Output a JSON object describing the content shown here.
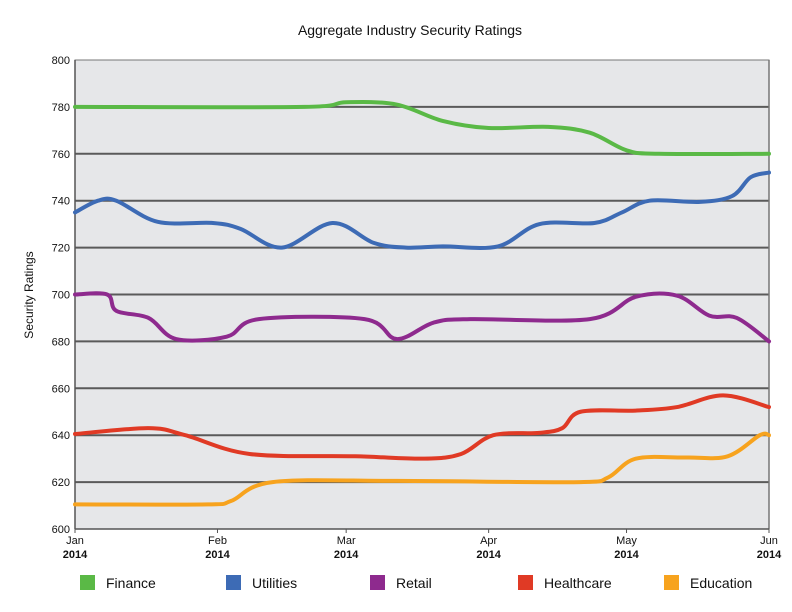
{
  "chart_data": {
    "type": "line",
    "title": "Aggregate Industry Security Ratings",
    "xlabel": "",
    "ylabel": "Security Ratings",
    "ylim": [
      600,
      800
    ],
    "yticks": [
      600,
      620,
      640,
      660,
      680,
      700,
      720,
      740,
      760,
      780,
      800
    ],
    "xlim": [
      "2014-01-01",
      "2014-06-01"
    ],
    "xticks": [
      {
        "date": "2014-01-01",
        "month": "Jan",
        "year": "2014"
      },
      {
        "date": "2014-02-01",
        "month": "Feb",
        "year": "2014"
      },
      {
        "date": "2014-03-01",
        "month": "Mar",
        "year": "2014"
      },
      {
        "date": "2014-04-01",
        "month": "Apr",
        "year": "2014"
      },
      {
        "date": "2014-05-01",
        "month": "May",
        "year": "2014"
      },
      {
        "date": "2014-06-01",
        "month": "Jun",
        "year": "2014"
      }
    ],
    "grid": true,
    "legend_position": "bottom",
    "background": "#e6e7e9",
    "series": [
      {
        "name": "Finance",
        "color": "#5ab946",
        "points": [
          [
            "2014-01-01",
            780
          ],
          [
            "2014-02-20",
            780
          ],
          [
            "2014-03-01",
            782
          ],
          [
            "2014-03-12",
            781
          ],
          [
            "2014-03-22",
            774
          ],
          [
            "2014-04-01",
            771
          ],
          [
            "2014-04-14",
            771.5
          ],
          [
            "2014-04-23",
            769
          ],
          [
            "2014-05-01",
            761.5
          ],
          [
            "2014-05-08",
            760
          ],
          [
            "2014-06-01",
            760
          ]
        ]
      },
      {
        "name": "Utilities",
        "color": "#3d6bb5",
        "points": [
          [
            "2014-01-01",
            735
          ],
          [
            "2014-01-06",
            740
          ],
          [
            "2014-01-10",
            740
          ],
          [
            "2014-01-19",
            731
          ],
          [
            "2014-01-31",
            730.5
          ],
          [
            "2014-02-06",
            728
          ],
          [
            "2014-02-15",
            720
          ],
          [
            "2014-02-26",
            730.5
          ],
          [
            "2014-03-07",
            722
          ],
          [
            "2014-03-14",
            720
          ],
          [
            "2014-03-22",
            720.5
          ],
          [
            "2014-04-03",
            720.5
          ],
          [
            "2014-04-12",
            730
          ],
          [
            "2014-04-24",
            730.5
          ],
          [
            "2014-04-30",
            735
          ],
          [
            "2014-05-06",
            740
          ],
          [
            "2014-05-17",
            739.5
          ],
          [
            "2014-05-24",
            742
          ],
          [
            "2014-05-28",
            750
          ],
          [
            "2014-06-01",
            752
          ]
        ]
      },
      {
        "name": "Retail",
        "color": "#8e2a8e",
        "points": [
          [
            "2014-01-01",
            700
          ],
          [
            "2014-01-08",
            700
          ],
          [
            "2014-01-10",
            693
          ],
          [
            "2014-01-17",
            690
          ],
          [
            "2014-01-23",
            681
          ],
          [
            "2014-02-03",
            682
          ],
          [
            "2014-02-10",
            689.5
          ],
          [
            "2014-03-05",
            689.5
          ],
          [
            "2014-03-12",
            681
          ],
          [
            "2014-03-20",
            688
          ],
          [
            "2014-03-28",
            689.5
          ],
          [
            "2014-04-23",
            689.5
          ],
          [
            "2014-05-03",
            699
          ],
          [
            "2014-05-12",
            699.5
          ],
          [
            "2014-05-19",
            691
          ],
          [
            "2014-05-25",
            690
          ],
          [
            "2014-06-01",
            680
          ]
        ]
      },
      {
        "name": "Healthcare",
        "color": "#e03a25",
        "points": [
          [
            "2014-01-01",
            640.5
          ],
          [
            "2014-01-17",
            643
          ],
          [
            "2014-01-25",
            640
          ],
          [
            "2014-02-08",
            632
          ],
          [
            "2014-03-03",
            631
          ],
          [
            "2014-03-18",
            630
          ],
          [
            "2014-03-26",
            632
          ],
          [
            "2014-04-02",
            640
          ],
          [
            "2014-04-12",
            641
          ],
          [
            "2014-04-17",
            643
          ],
          [
            "2014-04-21",
            650
          ],
          [
            "2014-05-03",
            650.5
          ],
          [
            "2014-05-12",
            652
          ],
          [
            "2014-05-22",
            657
          ],
          [
            "2014-06-01",
            652
          ]
        ]
      },
      {
        "name": "Education",
        "color": "#f7a31e",
        "points": [
          [
            "2014-01-01",
            610.5
          ],
          [
            "2014-01-30",
            610.5
          ],
          [
            "2014-02-04",
            612
          ],
          [
            "2014-02-13",
            620
          ],
          [
            "2014-03-12",
            620.5
          ],
          [
            "2014-04-21",
            620
          ],
          [
            "2014-04-27",
            622
          ],
          [
            "2014-05-03",
            630
          ],
          [
            "2014-05-14",
            630.5
          ],
          [
            "2014-05-23",
            631
          ],
          [
            "2014-05-30",
            640
          ],
          [
            "2014-06-01",
            640
          ]
        ]
      }
    ]
  }
}
